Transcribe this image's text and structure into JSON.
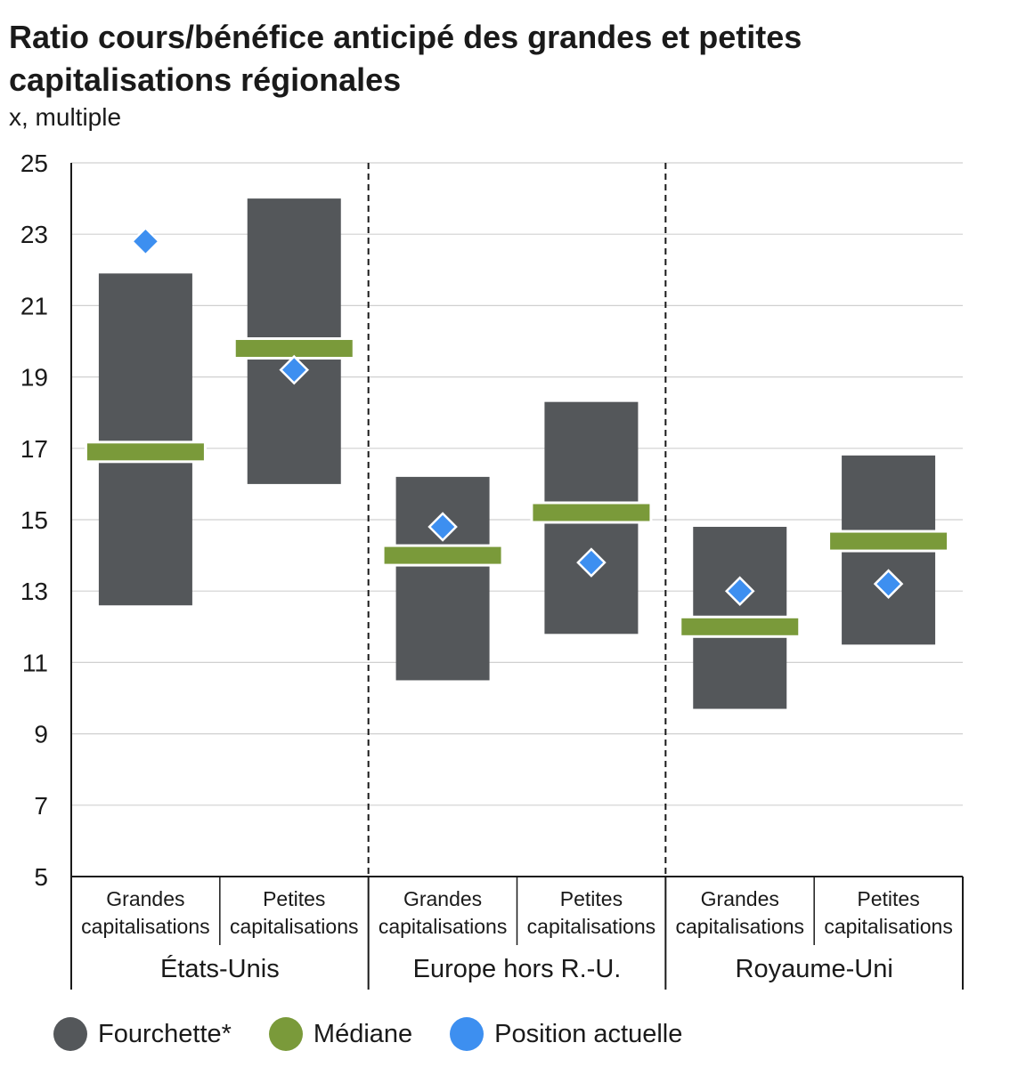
{
  "title": "Ratio cours/bénéfice anticipé des grandes et petites capitalisations régionales",
  "unit_label": "x, multiple",
  "colors": {
    "range": "#54575a",
    "median": "#7a9a3a",
    "current": "#3d8ff0",
    "grid": "#d0d0d0",
    "axis": "#1a1a1a"
  },
  "legend": [
    {
      "label": "Fourchette*",
      "color": "#54575a"
    },
    {
      "label": "Médiane",
      "color": "#7a9a3a"
    },
    {
      "label": "Position actuelle",
      "color": "#3d8ff0"
    }
  ],
  "chart_data": {
    "type": "bar",
    "title": "Ratio cours/bénéfice anticipé des grandes et petites capitalisations régionales",
    "ylabel": "x, multiple",
    "ylim": [
      5,
      25
    ],
    "yticks": [
      5,
      7,
      9,
      11,
      13,
      15,
      17,
      19,
      21,
      23,
      25
    ],
    "grid": true,
    "legend_position": "bottom",
    "groups": [
      "États-Unis",
      "Europe hors R.-U.",
      "Royaume-Uni"
    ],
    "categories": [
      {
        "group": "États-Unis",
        "line1": "Grandes",
        "line2": "capitalisations"
      },
      {
        "group": "États-Unis",
        "line1": "Petites",
        "line2": "capitalisations"
      },
      {
        "group": "Europe hors R.-U.",
        "line1": "Grandes",
        "line2": "capitalisations"
      },
      {
        "group": "Europe hors R.-U.",
        "line1": "Petites",
        "line2": "capitalisations"
      },
      {
        "group": "Royaume-Uni",
        "line1": "Grandes",
        "line2": "capitalisations"
      },
      {
        "group": "Royaume-Uni",
        "line1": "Petites",
        "line2": "capitalisations"
      }
    ],
    "series": [
      {
        "name": "Fourchette*",
        "values": [
          [
            12.6,
            21.9
          ],
          [
            16.0,
            24.0
          ],
          [
            10.5,
            16.2
          ],
          [
            11.8,
            18.3
          ],
          [
            9.7,
            14.8
          ],
          [
            11.5,
            16.8
          ]
        ]
      },
      {
        "name": "Médiane",
        "values": [
          16.9,
          19.8,
          14.0,
          15.2,
          12.0,
          14.4
        ]
      },
      {
        "name": "Position actuelle",
        "values": [
          22.8,
          19.2,
          14.8,
          13.8,
          13.0,
          13.2
        ]
      }
    ]
  }
}
